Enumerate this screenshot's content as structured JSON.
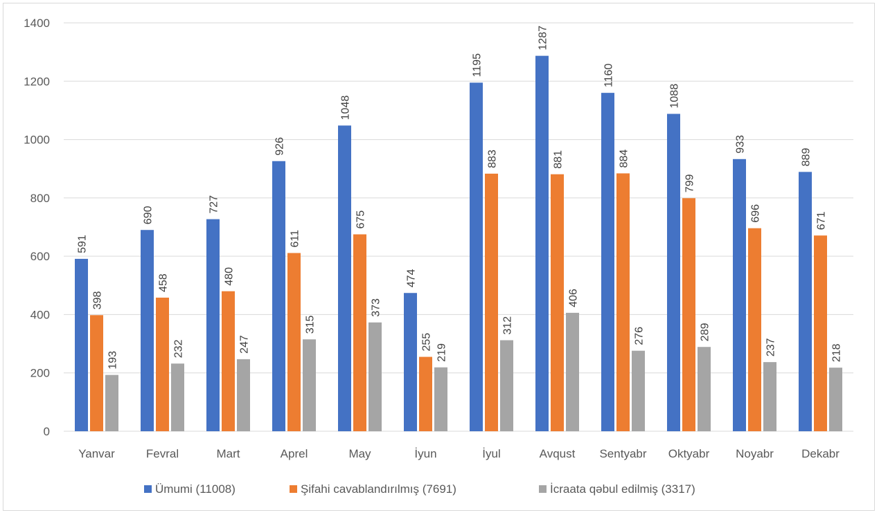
{
  "chart_data": {
    "type": "bar",
    "categories": [
      "Yanvar",
      "Fevral",
      "Mart",
      "Aprel",
      "May",
      "İyun",
      "İyul",
      "Avqust",
      "Sentyabr",
      "Oktyabr",
      "Noyabr",
      "Dekabr"
    ],
    "series": [
      {
        "name": "Ümumi (11008)",
        "color": "#4472c4",
        "values": [
          591,
          690,
          727,
          926,
          1048,
          474,
          1195,
          1287,
          1160,
          1088,
          933,
          889
        ]
      },
      {
        "name": "Şifahi cavablandırılmış (7691)",
        "color": "#ed7d31",
        "values": [
          398,
          458,
          480,
          611,
          675,
          255,
          883,
          881,
          884,
          799,
          696,
          671
        ]
      },
      {
        "name": "İcraata qəbul edilmiş (3317)",
        "color": "#a5a5a5",
        "values": [
          193,
          232,
          247,
          315,
          373,
          219,
          312,
          406,
          276,
          289,
          237,
          218
        ]
      }
    ],
    "ylim": [
      0,
      1400
    ],
    "yticks": [
      0,
      200,
      400,
      600,
      800,
      1000,
      1200,
      1400
    ],
    "grid": true,
    "legend": "bottom",
    "data_labels": "rotated-vertical"
  }
}
